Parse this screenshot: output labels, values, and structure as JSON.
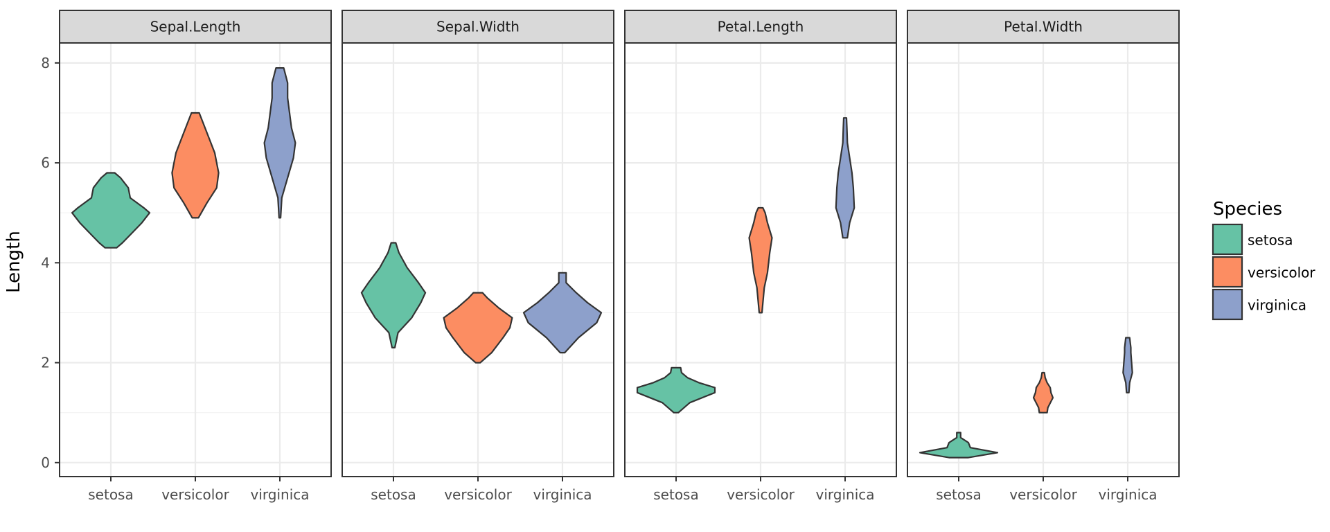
{
  "chart_data": {
    "type": "violin",
    "facet_by": "measure",
    "facets": [
      "Sepal.Length",
      "Sepal.Width",
      "Petal.Length",
      "Petal.Width"
    ],
    "categories": [
      "setosa",
      "versicolor",
      "virginica"
    ],
    "ylabel": "Length",
    "xlabel": "",
    "ylim": [
      -0.28,
      8.4
    ],
    "yticks": [
      0,
      2,
      4,
      6,
      8
    ],
    "grid": true,
    "legend": {
      "title": "Species",
      "position": "right",
      "items": [
        "setosa",
        "versicolor",
        "virginica"
      ]
    },
    "colors": {
      "setosa": "#66c2a5",
      "versicolor": "#fc8d62",
      "virginica": "#8da0cb"
    },
    "outline_color": "#333333",
    "panels": [
      {
        "facet": "Sepal.Length",
        "violins": [
          {
            "species": "setosa",
            "profile": [
              [
                4.3,
                0.15
              ],
              [
                4.4,
                0.3
              ],
              [
                4.6,
                0.55
              ],
              [
                4.8,
                0.8
              ],
              [
                5.0,
                1.0
              ],
              [
                5.1,
                0.85
              ],
              [
                5.3,
                0.5
              ],
              [
                5.5,
                0.45
              ],
              [
                5.7,
                0.25
              ],
              [
                5.8,
                0.1
              ]
            ]
          },
          {
            "species": "versicolor",
            "profile": [
              [
                4.9,
                0.08
              ],
              [
                5.2,
                0.3
              ],
              [
                5.5,
                0.55
              ],
              [
                5.8,
                0.6
              ],
              [
                6.0,
                0.55
              ],
              [
                6.2,
                0.5
              ],
              [
                6.5,
                0.35
              ],
              [
                6.8,
                0.2
              ],
              [
                7.0,
                0.1
              ]
            ]
          },
          {
            "species": "virginica",
            "profile": [
              [
                4.9,
                0.02
              ],
              [
                5.3,
                0.05
              ],
              [
                5.7,
                0.2
              ],
              [
                6.1,
                0.35
              ],
              [
                6.4,
                0.4
              ],
              [
                6.7,
                0.3
              ],
              [
                7.0,
                0.25
              ],
              [
                7.3,
                0.2
              ],
              [
                7.6,
                0.2
              ],
              [
                7.9,
                0.1
              ]
            ]
          }
        ]
      },
      {
        "facet": "Sepal.Width",
        "violins": [
          {
            "species": "setosa",
            "profile": [
              [
                2.3,
                0.03
              ],
              [
                2.6,
                0.1
              ],
              [
                2.9,
                0.4
              ],
              [
                3.2,
                0.6
              ],
              [
                3.4,
                0.7
              ],
              [
                3.6,
                0.55
              ],
              [
                3.9,
                0.3
              ],
              [
                4.2,
                0.12
              ],
              [
                4.4,
                0.05
              ]
            ]
          },
          {
            "species": "versicolor",
            "profile": [
              [
                2.0,
                0.05
              ],
              [
                2.2,
                0.3
              ],
              [
                2.5,
                0.55
              ],
              [
                2.7,
                0.7
              ],
              [
                2.9,
                0.75
              ],
              [
                3.1,
                0.45
              ],
              [
                3.3,
                0.2
              ],
              [
                3.4,
                0.1
              ]
            ]
          },
          {
            "species": "virginica",
            "profile": [
              [
                2.2,
                0.05
              ],
              [
                2.5,
                0.35
              ],
              [
                2.8,
                0.75
              ],
              [
                3.0,
                0.85
              ],
              [
                3.2,
                0.55
              ],
              [
                3.4,
                0.3
              ],
              [
                3.6,
                0.08
              ],
              [
                3.8,
                0.08
              ]
            ]
          }
        ]
      },
      {
        "facet": "Petal.Length",
        "violins": [
          {
            "species": "setosa",
            "profile": [
              [
                1.0,
                0.05
              ],
              [
                1.2,
                0.3
              ],
              [
                1.4,
                0.85
              ],
              [
                1.5,
                0.85
              ],
              [
                1.6,
                0.5
              ],
              [
                1.7,
                0.25
              ],
              [
                1.8,
                0.12
              ],
              [
                1.9,
                0.1
              ]
            ]
          },
          {
            "species": "versicolor",
            "profile": [
              [
                3.0,
                0.03
              ],
              [
                3.5,
                0.08
              ],
              [
                3.8,
                0.15
              ],
              [
                4.2,
                0.2
              ],
              [
                4.5,
                0.25
              ],
              [
                4.8,
                0.15
              ],
              [
                5.0,
                0.1
              ],
              [
                5.1,
                0.05
              ]
            ]
          },
          {
            "species": "virginica",
            "profile": [
              [
                4.5,
                0.05
              ],
              [
                4.8,
                0.1
              ],
              [
                5.1,
                0.2
              ],
              [
                5.5,
                0.18
              ],
              [
                5.8,
                0.15
              ],
              [
                6.1,
                0.1
              ],
              [
                6.4,
                0.05
              ],
              [
                6.7,
                0.04
              ],
              [
                6.9,
                0.03
              ]
            ]
          }
        ]
      },
      {
        "facet": "Petal.Width",
        "violins": [
          {
            "species": "setosa",
            "profile": [
              [
                0.1,
                0.25
              ],
              [
                0.2,
                1.0
              ],
              [
                0.3,
                0.3
              ],
              [
                0.4,
                0.25
              ],
              [
                0.5,
                0.05
              ],
              [
                0.6,
                0.05
              ]
            ]
          },
          {
            "species": "versicolor",
            "profile": [
              [
                1.0,
                0.1
              ],
              [
                1.1,
                0.12
              ],
              [
                1.3,
                0.25
              ],
              [
                1.4,
                0.2
              ],
              [
                1.5,
                0.18
              ],
              [
                1.6,
                0.1
              ],
              [
                1.7,
                0.05
              ],
              [
                1.8,
                0.03
              ]
            ]
          },
          {
            "species": "virginica",
            "profile": [
              [
                1.4,
                0.03
              ],
              [
                1.6,
                0.05
              ],
              [
                1.8,
                0.12
              ],
              [
                2.0,
                0.1
              ],
              [
                2.2,
                0.08
              ],
              [
                2.3,
                0.08
              ],
              [
                2.5,
                0.05
              ]
            ]
          }
        ]
      }
    ]
  }
}
